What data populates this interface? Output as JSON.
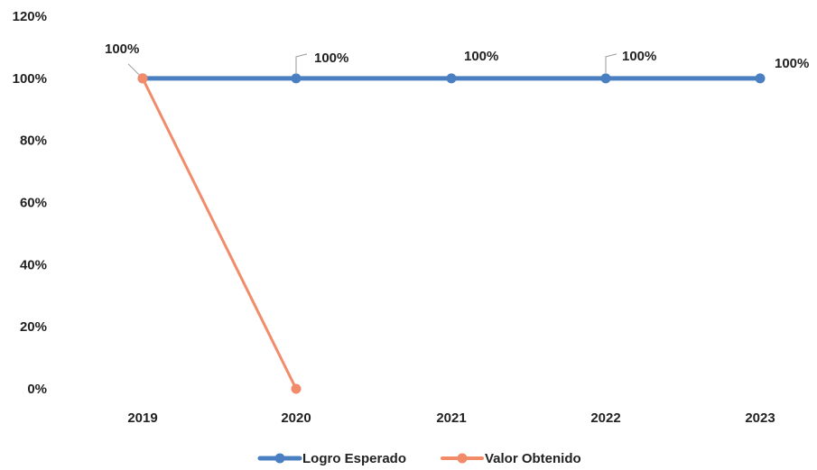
{
  "chart_data": {
    "type": "line",
    "title": "",
    "xlabel": "",
    "ylabel": "",
    "categories": [
      "2019",
      "2020",
      "2021",
      "2022",
      "2023"
    ],
    "ylim": [
      0,
      120
    ],
    "yticks": [
      0,
      20,
      40,
      60,
      80,
      100,
      120
    ],
    "y_tick_labels": [
      "0%",
      "20%",
      "40%",
      "60%",
      "80%",
      "100%",
      "120%"
    ],
    "grid": false,
    "legend_position": "bottom-center",
    "series": [
      {
        "name": "Logro Esperado",
        "color": "#4a7fc1",
        "values": [
          100,
          100,
          100,
          100,
          100
        ],
        "data_labels": [
          "",
          "100%",
          "100%",
          "100%",
          "100%"
        ]
      },
      {
        "name": "Valor Obtenido",
        "color": "#f28b6a",
        "values": [
          100,
          0,
          null,
          null,
          null
        ],
        "data_labels": [
          "100%",
          "",
          "",
          "",
          ""
        ]
      }
    ]
  }
}
